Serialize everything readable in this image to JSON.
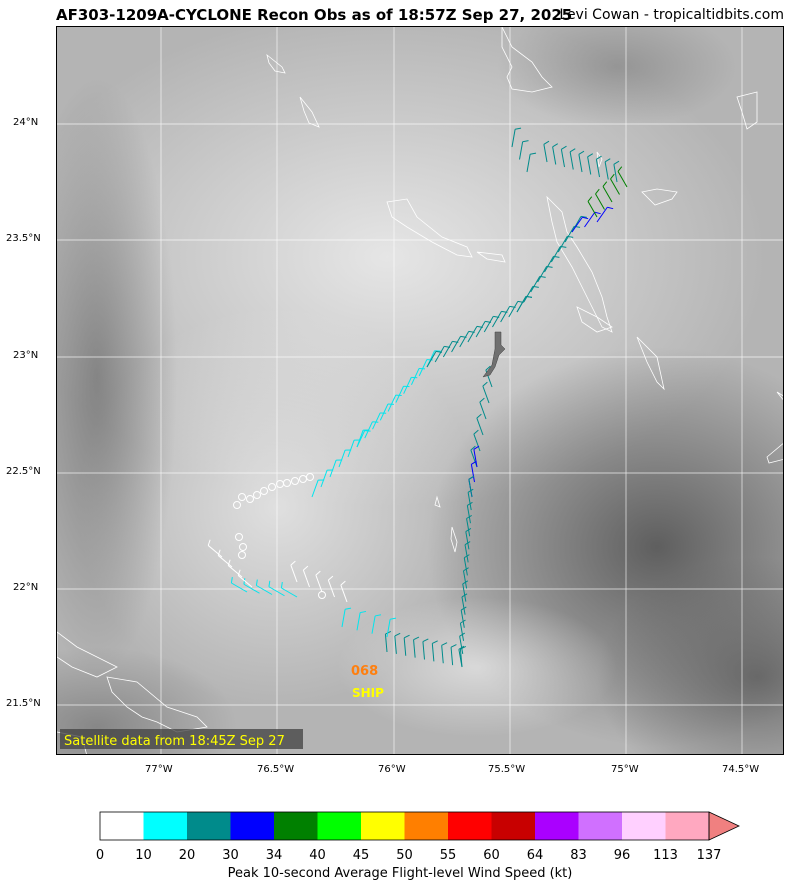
{
  "header": {
    "title": "AF303-1209A-CYCLONE Recon Obs as of 18:57Z Sep 27, 2025",
    "credit": "Levi Cowan - tropicaltidbits.com"
  },
  "map": {
    "satellite_note": "Satellite data from 18:45Z Sep 27",
    "lat_labels": [
      "24°N",
      "23.5°N",
      "23°N",
      "22.5°N",
      "22°N",
      "21.5°N"
    ],
    "lon_labels": [
      "77°W",
      "76.5°W",
      "76°W",
      "75.5°W",
      "75°W",
      "74.5°W"
    ],
    "ship_obs": {
      "value": "068",
      "label": "SHIP",
      "value_color": "#ff7f0e",
      "label_color": "#ffff00"
    }
  },
  "colorbar": {
    "label": "Peak 10-second Average Flight-level Wind Speed (kt)",
    "ticks": [
      "0",
      "10",
      "20",
      "30",
      "34",
      "40",
      "45",
      "50",
      "55",
      "60",
      "64",
      "83",
      "96",
      "113",
      "137"
    ],
    "colors": [
      "#ffffff",
      "#00ffff",
      "#008b8b",
      "#0000ff",
      "#008000",
      "#00ff00",
      "#ffff00",
      "#ff7f00",
      "#ff0000",
      "#c80000",
      "#aa00ff",
      "#d070ff",
      "#ffd0ff",
      "#ffa8c0"
    ],
    "extend_color": "#f08080"
  }
}
